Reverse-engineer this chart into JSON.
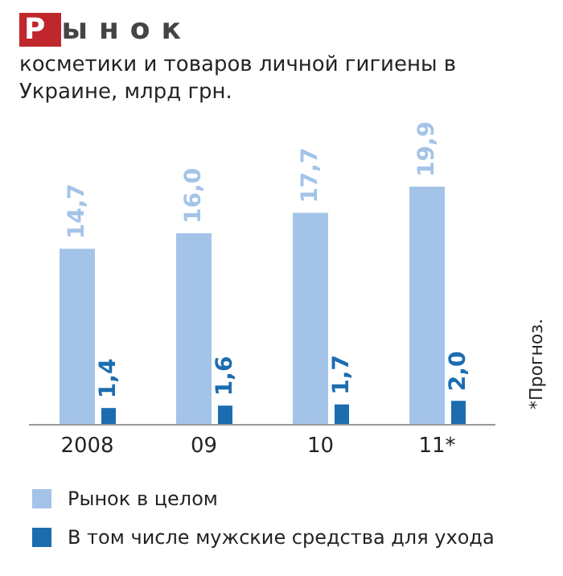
{
  "chart_data": {
    "type": "bar",
    "title": "Рынок",
    "subtitle": "косметики и товаров личной гигиены в Украине, млрд грн.",
    "annotations": [
      "*Прогноз."
    ],
    "categories": [
      "2008",
      "09",
      "10",
      "11*"
    ],
    "series": [
      {
        "name": "Рынок в целом",
        "color": "#a4c3e8",
        "values": [
          14.7,
          16.0,
          17.7,
          19.9
        ],
        "value_labels": [
          "14,7",
          "16,0",
          "17,7",
          "19,9"
        ]
      },
      {
        "name": "В том числе мужские средства для ухода",
        "color": "#1c6db0",
        "values": [
          1.4,
          1.6,
          1.7,
          2.0
        ],
        "value_labels": [
          "1,4",
          "1,6",
          "1,7",
          "2,0"
        ]
      }
    ],
    "legend": "bottom"
  }
}
